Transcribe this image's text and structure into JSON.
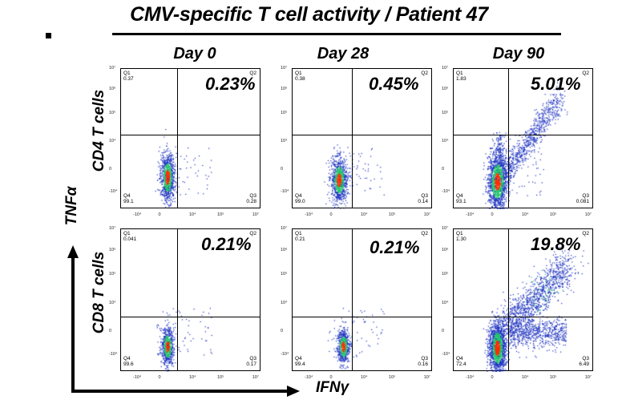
{
  "figure": {
    "title": "CMV-specific T cell activity / Patient 47",
    "columns": [
      "Day 0",
      "Day 28",
      "Day 90"
    ],
    "rows": [
      "CD4 T cells",
      "CD8 T cells"
    ],
    "y_axis_label": "TNFα",
    "x_axis_label": "IFNγ",
    "y_tick_labels": [
      "10⁷",
      "10⁶",
      "10⁵",
      "10⁴",
      "0",
      "-10⁴"
    ],
    "x_tick_labels": [
      "-10⁴",
      "0",
      "10⁴",
      "10⁵",
      "10⁷"
    ]
  },
  "chart_data": [
    {
      "type": "scatter",
      "row": "CD4 T cells",
      "column": "Day 0",
      "Q1": "0.37",
      "Q2": "0.23%",
      "Q3": "0.28",
      "Q4": "99.1",
      "Q2_label": "Q2",
      "Q1_label": "Q1",
      "Q3_label": "Q3",
      "Q4_label": "Q4"
    },
    {
      "type": "scatter",
      "row": "CD4 T cells",
      "column": "Day 28",
      "Q1": "0.38",
      "Q2": "0.45%",
      "Q3": "0.14",
      "Q4": "99.0",
      "Q2_label": "Q2",
      "Q1_label": "Q1",
      "Q3_label": "Q3",
      "Q4_label": "Q4"
    },
    {
      "type": "scatter",
      "row": "CD4 T cells",
      "column": "Day 90",
      "Q1": "1.83",
      "Q2": "5.01%",
      "Q3": "0.081",
      "Q4": "93.1",
      "Q2_label": "Q2",
      "Q1_label": "Q1",
      "Q3_label": "Q3",
      "Q4_label": "Q4"
    },
    {
      "type": "scatter",
      "row": "CD8 T cells",
      "column": "Day 0",
      "Q1": "0.041",
      "Q2": "0.21%",
      "Q3": "0.17",
      "Q4": "99.6",
      "Q2_label": "Q2",
      "Q1_label": "Q1",
      "Q3_label": "Q3",
      "Q4_label": "Q4"
    },
    {
      "type": "scatter",
      "row": "CD8 T cells",
      "column": "Day 28",
      "Q1": "0.21",
      "Q2": "0.21%",
      "Q3": "0.16",
      "Q4": "99.4",
      "Q2_label": "Q2",
      "Q1_label": "Q1",
      "Q3_label": "Q3",
      "Q4_label": "Q4"
    },
    {
      "type": "scatter",
      "row": "CD8 T cells",
      "column": "Day 90",
      "Q1": "1.30",
      "Q2": "19.8%",
      "Q3": "6.49",
      "Q4": "72.4",
      "Q2_label": "Q2",
      "Q1_label": "Q1",
      "Q3_label": "Q3",
      "Q4_label": "Q4"
    }
  ],
  "colors": {
    "density_low": "#1a2fbf",
    "density_mid": "#22c36a",
    "density_high": "#ff2a00",
    "axis": "#000000"
  }
}
